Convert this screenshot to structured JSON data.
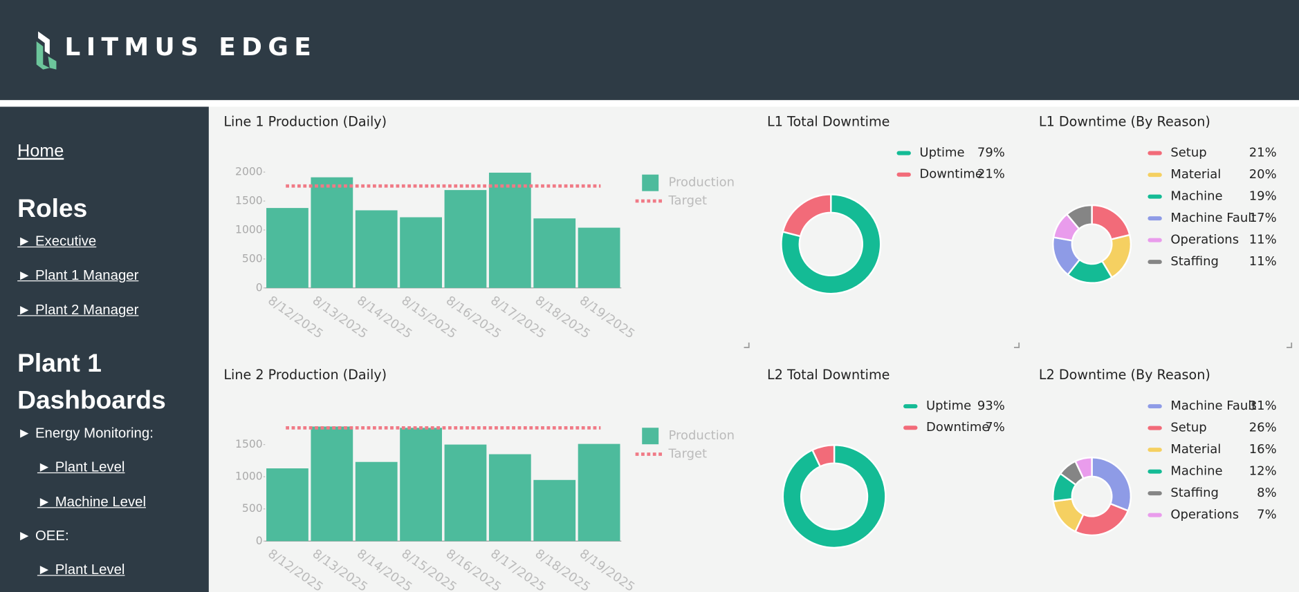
{
  "header": {
    "title": "LITMUS EDGE"
  },
  "sidebar": {
    "home": "Home",
    "roles_heading": "Roles",
    "roles": [
      "► Executive",
      "► Plant 1 Manager",
      "► Plant 2 Manager"
    ],
    "dashboards_heading": "Plant 1 Dashboards",
    "items": [
      "► Energy Monitoring:",
      "► Plant Level",
      "► Machine Level",
      "► OEE:",
      "► Plant Level"
    ]
  },
  "chart_data": [
    {
      "type": "bar",
      "title": "Line 1 Production (Daily)",
      "categories": [
        "8/12/2025",
        "8/13/2025",
        "8/14/2025",
        "8/15/2025",
        "8/16/2025",
        "8/17/2025",
        "8/18/2025",
        "8/19/2025"
      ],
      "series": [
        {
          "name": "Production",
          "color": "#4dbb9c",
          "values": [
            1380,
            1910,
            1340,
            1220,
            1690,
            1990,
            1200,
            1040
          ]
        },
        {
          "name": "Target",
          "color": "#f07a86",
          "values": [
            1760,
            1760,
            1760,
            1760,
            1760,
            1760,
            1760,
            1760
          ]
        }
      ],
      "ylim": [
        0,
        2000
      ],
      "yticks": [
        0,
        500,
        1000,
        1500,
        2000
      ]
    },
    {
      "type": "donut",
      "title": "L1 Total Downtime",
      "categories": [
        "Uptime",
        "Downtime"
      ],
      "values": [
        79,
        21
      ],
      "value_labels": [
        "79%",
        "21%"
      ],
      "colors": [
        "#14bb95",
        "#f26b79"
      ]
    },
    {
      "type": "donut",
      "title": "L1 Downtime (By Reason)",
      "categories": [
        "Setup",
        "Material",
        "Machine",
        "Machine Fault",
        "Operations",
        "Staffing"
      ],
      "values": [
        21,
        20,
        19,
        17,
        11,
        11
      ],
      "value_labels": [
        "21%",
        "20%",
        "19%",
        "17%",
        "11%",
        "11%"
      ],
      "colors": [
        "#f26b79",
        "#f5d061",
        "#14bb95",
        "#8e9be6",
        "#e99cec",
        "#858585"
      ]
    },
    {
      "type": "bar",
      "title": "Line 2 Production (Daily)",
      "categories": [
        "8/12/2025",
        "8/13/2025",
        "8/14/2025",
        "8/15/2025",
        "8/16/2025",
        "8/17/2025",
        "8/18/2025",
        "8/19/2025"
      ],
      "series": [
        {
          "name": "Production",
          "color": "#4dbb9c",
          "values": [
            1130,
            1780,
            1230,
            1760,
            1500,
            1350,
            950,
            1510
          ]
        },
        {
          "name": "Target",
          "color": "#f07a86",
          "values": [
            1760,
            1760,
            1760,
            1760,
            1760,
            1760,
            1760,
            1760
          ]
        }
      ],
      "ylim": [
        0,
        1800
      ],
      "yticks": [
        0,
        500,
        1000,
        1500
      ]
    },
    {
      "type": "donut",
      "title": "L2 Total Downtime",
      "categories": [
        "Uptime",
        "Downtime"
      ],
      "values": [
        93,
        7
      ],
      "value_labels": [
        "93%",
        "7%"
      ],
      "colors": [
        "#14bb95",
        "#f26b79"
      ]
    },
    {
      "type": "donut",
      "title": "L2 Downtime (By Reason)",
      "categories": [
        "Machine Fault",
        "Setup",
        "Material",
        "Machine",
        "Staffing",
        "Operations"
      ],
      "values": [
        31,
        26,
        16,
        12,
        8,
        7
      ],
      "value_labels": [
        "31%",
        "26%",
        "16%",
        "12%",
        "8%",
        "7%"
      ],
      "colors": [
        "#8e9be6",
        "#f26b79",
        "#f5d061",
        "#14bb95",
        "#858585",
        "#e99cec"
      ]
    }
  ]
}
